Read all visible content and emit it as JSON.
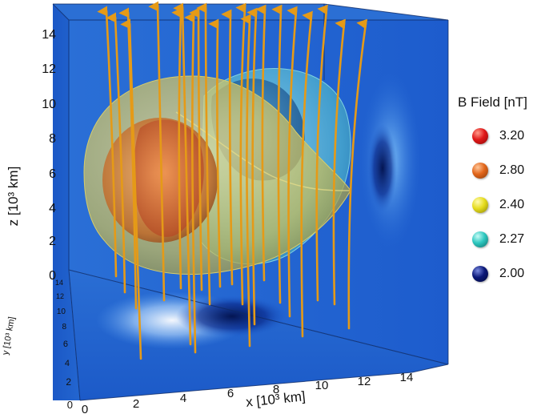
{
  "axes": {
    "z_label": "z [10³ km]",
    "x_label": "x [10³ km]",
    "y_label": "y [10³ km]",
    "z_ticks": [
      "0",
      "2",
      "4",
      "6",
      "8",
      "10",
      "12",
      "14"
    ],
    "x_ticks": [
      "0",
      "2",
      "4",
      "6",
      "8",
      "10",
      "12",
      "14"
    ],
    "y_ticks": [
      "0",
      "2",
      "4",
      "6",
      "8",
      "10",
      "12",
      "14"
    ]
  },
  "legend": {
    "title": "B Field [nT]",
    "items": [
      {
        "value": "3.20",
        "color": "#d81414"
      },
      {
        "value": "2.80",
        "color": "#e2661b"
      },
      {
        "value": "2.40",
        "color": "#e6dc1e"
      },
      {
        "value": "2.27",
        "color": "#2ec8c0"
      },
      {
        "value": "2.00",
        "color": "#0b1878"
      }
    ]
  },
  "colors": {
    "background_blue": "#1f63d0",
    "field_line": "#e59a17"
  }
}
